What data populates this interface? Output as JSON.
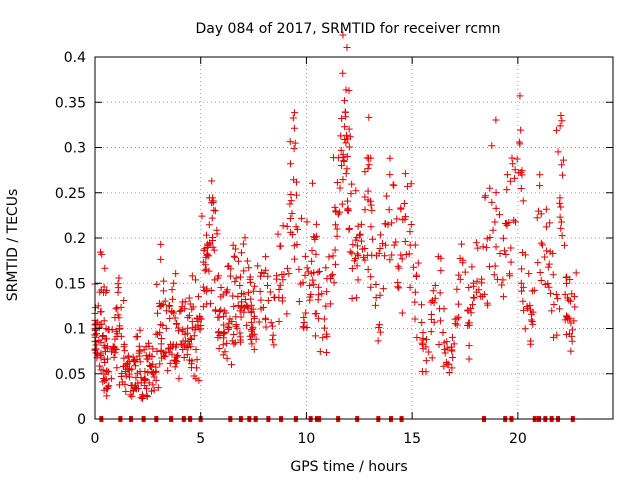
{
  "colors": {
    "series": "#e00000",
    "grid": "#a0a0a0",
    "frame": "#000000",
    "background": "#ffffff"
  },
  "chart_data": {
    "type": "scatter",
    "title": "Day 084 of 2017, SRMTID for receiver rcmn",
    "xlabel": "GPS time / hours",
    "ylabel": "SRMTID / TECUs",
    "xlim": [
      0,
      24.5
    ],
    "ylim": [
      0,
      0.4
    ],
    "x_ticks": [
      0,
      5,
      10,
      15,
      20
    ],
    "x_tick_labels": [
      "0",
      "5",
      "10",
      "15",
      "20"
    ],
    "y_ticks": [
      0,
      0.05,
      0.1,
      0.15,
      0.2,
      0.25,
      0.3,
      0.35,
      0.4
    ],
    "y_tick_labels": [
      "0",
      "0.05",
      "0.1",
      "0.15",
      "0.2",
      "0.25",
      "0.3",
      "0.35",
      "0.4"
    ],
    "grid": true,
    "marker": "+",
    "series": [
      {
        "name": "SRMTID",
        "note": "dense scatter of satellite passes; clusters summarised as [x, y] points",
        "points": [
          [
            0.0,
            0.09
          ],
          [
            0.0,
            0.1
          ],
          [
            0.05,
            0.12
          ],
          [
            0.1,
            0.08
          ],
          [
            0.2,
            0.11
          ],
          [
            0.3,
            0.07
          ],
          [
            0.35,
            0.06
          ],
          [
            0.4,
            0.15
          ],
          [
            0.45,
            0.09
          ],
          [
            0.5,
            0.12
          ],
          [
            0.55,
            0.05
          ],
          [
            0.6,
            0.07
          ],
          [
            0.7,
            0.04
          ],
          [
            0.8,
            0.08
          ],
          [
            0.9,
            0.06
          ],
          [
            1.0,
            0.1
          ],
          [
            1.1,
            0.12
          ],
          [
            1.2,
            0.13
          ],
          [
            1.3,
            0.05
          ],
          [
            1.4,
            0.08
          ],
          [
            1.5,
            0.07
          ],
          [
            1.6,
            0.04
          ],
          [
            1.7,
            0.06
          ],
          [
            1.8,
            0.03
          ],
          [
            1.9,
            0.05
          ],
          [
            2.0,
            0.07
          ],
          [
            2.1,
            0.09
          ],
          [
            2.2,
            0.04
          ],
          [
            2.3,
            0.06
          ],
          [
            2.4,
            0.03
          ],
          [
            2.5,
            0.05
          ],
          [
            2.6,
            0.07
          ],
          [
            2.7,
            0.04
          ],
          [
            2.8,
            0.06
          ],
          [
            2.9,
            0.05
          ],
          [
            3.0,
            0.08
          ],
          [
            3.1,
            0.12
          ],
          [
            3.2,
            0.16
          ],
          [
            3.3,
            0.1
          ],
          [
            3.4,
            0.07
          ],
          [
            3.5,
            0.11
          ],
          [
            3.6,
            0.09
          ],
          [
            3.7,
            0.13
          ],
          [
            3.8,
            0.06
          ],
          [
            3.9,
            0.08
          ],
          [
            4.0,
            0.1
          ],
          [
            4.1,
            0.12
          ],
          [
            4.2,
            0.07
          ],
          [
            4.3,
            0.09
          ],
          [
            4.4,
            0.11
          ],
          [
            4.5,
            0.08
          ],
          [
            4.6,
            0.1
          ],
          [
            4.7,
            0.13
          ],
          [
            4.8,
            0.06
          ],
          [
            4.9,
            0.09
          ],
          [
            5.0,
            0.12
          ],
          [
            5.1,
            0.17
          ],
          [
            5.2,
            0.2
          ],
          [
            5.3,
            0.15
          ],
          [
            5.4,
            0.18
          ],
          [
            5.5,
            0.24
          ],
          [
            5.6,
            0.22
          ],
          [
            5.7,
            0.19
          ],
          [
            5.8,
            0.13
          ],
          [
            5.9,
            0.11
          ],
          [
            6.0,
            0.09
          ],
          [
            6.1,
            0.12
          ],
          [
            6.2,
            0.1
          ],
          [
            6.3,
            0.14
          ],
          [
            6.4,
            0.08
          ],
          [
            6.5,
            0.11
          ],
          [
            6.6,
            0.13
          ],
          [
            6.7,
            0.16
          ],
          [
            6.8,
            0.1
          ],
          [
            6.9,
            0.12
          ],
          [
            7.0,
            0.15
          ],
          [
            7.1,
            0.17
          ],
          [
            7.2,
            0.14
          ],
          [
            7.3,
            0.11
          ],
          [
            7.4,
            0.13
          ],
          [
            7.5,
            0.1
          ],
          [
            7.6,
            0.12
          ],
          [
            7.8,
            0.14
          ],
          [
            8.0,
            0.16
          ],
          [
            8.2,
            0.13
          ],
          [
            8.4,
            0.11
          ],
          [
            8.6,
            0.14
          ],
          [
            8.8,
            0.18
          ],
          [
            9.0,
            0.15
          ],
          [
            9.2,
            0.2
          ],
          [
            9.4,
            0.27
          ],
          [
            9.5,
            0.29
          ],
          [
            9.6,
            0.22
          ],
          [
            9.8,
            0.14
          ],
          [
            10.0,
            0.12
          ],
          [
            10.1,
            0.16
          ],
          [
            10.2,
            0.19
          ],
          [
            10.4,
            0.22
          ],
          [
            10.5,
            0.15
          ],
          [
            10.6,
            0.12
          ],
          [
            10.8,
            0.1
          ],
          [
            11.0,
            0.14
          ],
          [
            11.2,
            0.18
          ],
          [
            11.4,
            0.24
          ],
          [
            11.5,
            0.2
          ],
          [
            11.6,
            0.27
          ],
          [
            11.7,
            0.31
          ],
          [
            11.8,
            0.34
          ],
          [
            11.85,
            0.37
          ],
          [
            11.9,
            0.33
          ],
          [
            12.0,
            0.26
          ],
          [
            12.1,
            0.22
          ],
          [
            12.2,
            0.17
          ],
          [
            12.4,
            0.2
          ],
          [
            12.5,
            0.23
          ],
          [
            12.6,
            0.19
          ],
          [
            12.8,
            0.28
          ],
          [
            12.9,
            0.25
          ],
          [
            13.0,
            0.21
          ],
          [
            13.2,
            0.16
          ],
          [
            13.4,
            0.11
          ],
          [
            13.6,
            0.18
          ],
          [
            13.8,
            0.22
          ],
          [
            14.0,
            0.26
          ],
          [
            14.2,
            0.19
          ],
          [
            14.4,
            0.15
          ],
          [
            14.6,
            0.2
          ],
          [
            14.8,
            0.23
          ],
          [
            15.0,
            0.18
          ],
          [
            15.2,
            0.14
          ],
          [
            15.4,
            0.1
          ],
          [
            15.6,
            0.07
          ],
          [
            15.8,
            0.09
          ],
          [
            16.0,
            0.12
          ],
          [
            16.2,
            0.15
          ],
          [
            16.4,
            0.11
          ],
          [
            16.6,
            0.08
          ],
          [
            16.8,
            0.06
          ],
          [
            17.0,
            0.1
          ],
          [
            17.2,
            0.13
          ],
          [
            17.4,
            0.17
          ],
          [
            17.6,
            0.09
          ],
          [
            17.8,
            0.12
          ],
          [
            18.0,
            0.15
          ],
          [
            18.2,
            0.18
          ],
          [
            18.4,
            0.14
          ],
          [
            18.6,
            0.21
          ],
          [
            18.8,
            0.29
          ],
          [
            19.0,
            0.2
          ],
          [
            19.2,
            0.17
          ],
          [
            19.4,
            0.23
          ],
          [
            19.6,
            0.19
          ],
          [
            19.8,
            0.25
          ],
          [
            20.0,
            0.3
          ],
          [
            20.1,
            0.27
          ],
          [
            20.2,
            0.16
          ],
          [
            20.4,
            0.13
          ],
          [
            20.6,
            0.1
          ],
          [
            20.8,
            0.14
          ],
          [
            21.0,
            0.19
          ],
          [
            21.2,
            0.23
          ],
          [
            21.4,
            0.18
          ],
          [
            21.6,
            0.15
          ],
          [
            21.8,
            0.12
          ],
          [
            22.0,
            0.29
          ],
          [
            22.1,
            0.24
          ],
          [
            22.2,
            0.18
          ],
          [
            22.3,
            0.12
          ],
          [
            22.4,
            0.09
          ],
          [
            22.5,
            0.11
          ],
          [
            22.6,
            0.14
          ]
        ],
        "baseline_hours": [
          0.3,
          1.2,
          1.7,
          2.3,
          2.9,
          3.6,
          4.2,
          4.5,
          5.0,
          6.4,
          6.9,
          7.3,
          7.6,
          8.2,
          8.8,
          9.5,
          10.2,
          10.5,
          10.6,
          11.5,
          12.4,
          13.4,
          14.0,
          14.5,
          18.4,
          19.4,
          19.7,
          20.8,
          21.0,
          21.3,
          21.6,
          21.9,
          22.6
        ]
      }
    ]
  }
}
